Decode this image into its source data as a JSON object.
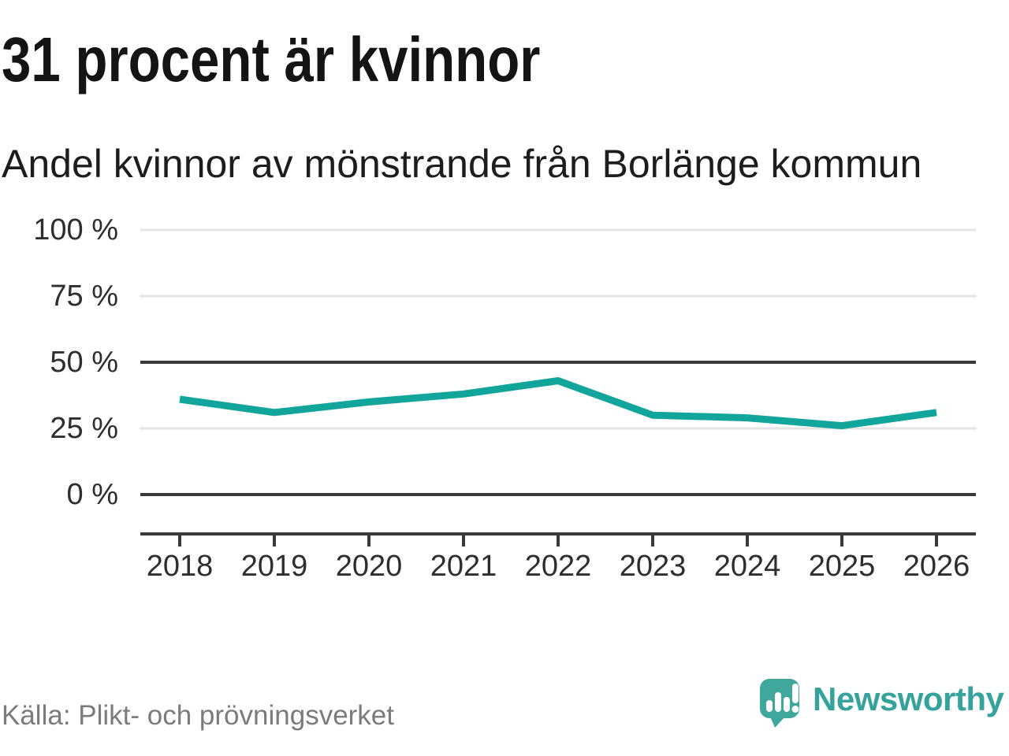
{
  "header": {
    "title": "31 procent är kvinnor",
    "subtitle": "Andel kvinnor av mönstrande från Borlänge kommun"
  },
  "chart_data": {
    "type": "line",
    "title": "31 procent är kvinnor",
    "subtitle": "Andel kvinnor av mönstrande från Borlänge kommun",
    "x": [
      "2018",
      "2019",
      "2020",
      "2021",
      "2022",
      "2023",
      "2024",
      "2025",
      "2026"
    ],
    "series": [
      {
        "name": "Andel kvinnor",
        "values": [
          36,
          31,
          35,
          38,
          43,
          30,
          29,
          26,
          31
        ]
      }
    ],
    "unit": "%",
    "xlabel": "",
    "ylabel": "",
    "ylim": [
      0,
      100
    ],
    "yticks": [
      {
        "value": 100,
        "label": "100 %",
        "emphasized": false
      },
      {
        "value": 75,
        "label": "75 %",
        "emphasized": false
      },
      {
        "value": 50,
        "label": "50 %",
        "emphasized": true
      },
      {
        "value": 25,
        "label": "25 %",
        "emphasized": false
      },
      {
        "value": 0,
        "label": "0 %",
        "emphasized": true
      }
    ],
    "grid": "horizontal",
    "legend": "none",
    "colors": {
      "line": "#11a59b",
      "grid_light": "#e4e4e4",
      "grid_dark": "#3a3a3a",
      "axis": "#3a3a3a",
      "tick_label": "#2e2e2e"
    }
  },
  "footer": {
    "source": "Källa: Plikt- och prövningsverket",
    "brand": "Newsworthy",
    "brand_color": "#35a39b",
    "logo_bubble_color": "#3fa79c"
  }
}
